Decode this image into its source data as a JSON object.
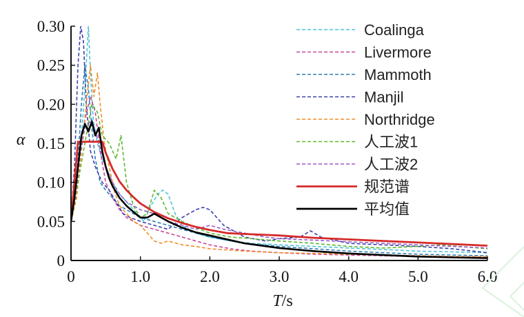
{
  "chart_data": {
    "type": "line",
    "title": "",
    "xlabel_symbol": "T",
    "xlabel_unit": "/s",
    "ylabel": "α",
    "xlim": [
      0,
      6.0
    ],
    "ylim": [
      0,
      0.3
    ],
    "xticks": [
      0,
      1.0,
      2.0,
      3.0,
      4.0,
      5.0,
      6.0
    ],
    "xtick_labels": [
      "0",
      "1.0",
      "2.0",
      "3.0",
      "4.0",
      "5.0",
      "6.0"
    ],
    "yticks": [
      0,
      0.05,
      0.1,
      0.15,
      0.2,
      0.25,
      0.3
    ],
    "ytick_labels": [
      "0",
      "0.05",
      "0.10",
      "0.15",
      "0.20",
      "0.25",
      "0.30"
    ],
    "legend_position": "top-right",
    "series": [
      {
        "name": "Coalinga",
        "color": "#4fc3d9",
        "dash": true,
        "x": [
          0,
          0.08,
          0.15,
          0.2,
          0.25,
          0.28,
          0.32,
          0.38,
          0.45,
          0.55,
          0.65,
          0.75,
          0.85,
          0.95,
          1.05,
          1.15,
          1.25,
          1.32,
          1.4,
          1.5,
          1.6,
          1.8,
          2.0,
          2.3,
          2.6,
          3.0,
          3.5,
          4.0,
          4.5,
          5.0,
          5.5,
          6.0
        ],
        "y": [
          0.05,
          0.09,
          0.16,
          0.22,
          0.3,
          0.24,
          0.18,
          0.15,
          0.13,
          0.11,
          0.09,
          0.08,
          0.07,
          0.06,
          0.05,
          0.07,
          0.085,
          0.09,
          0.085,
          0.06,
          0.045,
          0.035,
          0.03,
          0.025,
          0.022,
          0.02,
          0.018,
          0.016,
          0.014,
          0.012,
          0.011,
          0.01
        ]
      },
      {
        "name": "Livermore",
        "color": "#c8469a",
        "dash": true,
        "x": [
          0,
          0.05,
          0.12,
          0.2,
          0.28,
          0.35,
          0.42,
          0.5,
          0.6,
          0.7,
          0.8,
          0.9,
          1.0,
          1.2,
          1.4,
          1.6,
          1.8,
          2.0,
          2.3,
          2.6,
          3.0,
          3.5,
          4.0,
          4.5,
          5.0,
          5.5,
          6.0
        ],
        "y": [
          0.05,
          0.07,
          0.12,
          0.18,
          0.21,
          0.19,
          0.14,
          0.1,
          0.08,
          0.065,
          0.055,
          0.05,
          0.045,
          0.04,
          0.035,
          0.03,
          0.025,
          0.02,
          0.015,
          0.012,
          0.01,
          0.008,
          0.007,
          0.006,
          0.005,
          0.005,
          0.004
        ]
      },
      {
        "name": "Mammoth",
        "color": "#2e7fb3",
        "dash": true,
        "x": [
          0,
          0.08,
          0.15,
          0.2,
          0.25,
          0.3,
          0.35,
          0.42,
          0.5,
          0.6,
          0.7,
          0.8,
          0.9,
          1.0,
          1.2,
          1.4,
          1.6,
          1.8,
          2.0,
          2.5,
          3.0,
          3.5,
          4.0,
          4.5,
          5.0,
          5.5,
          6.0
        ],
        "y": [
          0.05,
          0.1,
          0.2,
          0.25,
          0.22,
          0.17,
          0.13,
          0.1,
          0.09,
          0.08,
          0.07,
          0.065,
          0.06,
          0.055,
          0.05,
          0.045,
          0.04,
          0.035,
          0.03,
          0.022,
          0.018,
          0.015,
          0.012,
          0.01,
          0.008,
          0.007,
          0.006
        ]
      },
      {
        "name": "Manjil",
        "color": "#3a3fa8",
        "dash": true,
        "x": [
          0,
          0.05,
          0.1,
          0.14,
          0.18,
          0.22,
          0.28,
          0.35,
          0.45,
          0.55,
          0.65,
          0.75,
          0.85,
          1.0,
          1.2,
          1.4,
          1.6,
          1.8,
          1.9,
          2.0,
          2.2,
          2.5,
          2.8,
          3.0,
          3.3,
          3.45,
          3.6,
          4.0,
          4.5,
          5.0,
          5.5,
          6.0
        ],
        "y": [
          0.05,
          0.12,
          0.25,
          0.3,
          0.28,
          0.2,
          0.14,
          0.12,
          0.1,
          0.09,
          0.075,
          0.06,
          0.055,
          0.05,
          0.045,
          0.04,
          0.055,
          0.065,
          0.068,
          0.065,
          0.045,
          0.03,
          0.025,
          0.028,
          0.03,
          0.038,
          0.03,
          0.022,
          0.02,
          0.018,
          0.015,
          0.01
        ]
      },
      {
        "name": "Northridge",
        "color": "#f28c28",
        "dash": true,
        "x": [
          0,
          0.08,
          0.15,
          0.22,
          0.28,
          0.33,
          0.38,
          0.42,
          0.48,
          0.55,
          0.62,
          0.7,
          0.8,
          0.9,
          1.0,
          1.1,
          1.2,
          1.3,
          1.4,
          1.6,
          1.8,
          2.0,
          2.5,
          3.0,
          3.5,
          4.0,
          4.5,
          5.0,
          5.5,
          6.0
        ],
        "y": [
          0.05,
          0.08,
          0.14,
          0.2,
          0.25,
          0.21,
          0.24,
          0.2,
          0.15,
          0.12,
          0.09,
          0.07,
          0.06,
          0.05,
          0.045,
          0.035,
          0.025,
          0.022,
          0.025,
          0.02,
          0.018,
          0.015,
          0.012,
          0.01,
          0.009,
          0.008,
          0.007,
          0.006,
          0.005,
          0.005
        ]
      },
      {
        "name": "人工波1",
        "color": "#5ab82e",
        "dash": true,
        "x": [
          0,
          0.1,
          0.2,
          0.3,
          0.38,
          0.45,
          0.55,
          0.65,
          0.72,
          0.8,
          0.9,
          1.0,
          1.1,
          1.2,
          1.3,
          1.4,
          1.6,
          1.8,
          2.0,
          2.3,
          2.6,
          3.0,
          3.5,
          4.0,
          4.5,
          5.0,
          5.3,
          5.6,
          6.0
        ],
        "y": [
          0.05,
          0.1,
          0.15,
          0.2,
          0.19,
          0.16,
          0.15,
          0.13,
          0.16,
          0.1,
          0.07,
          0.055,
          0.06,
          0.09,
          0.08,
          0.06,
          0.05,
          0.042,
          0.035,
          0.03,
          0.028,
          0.025,
          0.022,
          0.018,
          0.016,
          0.018,
          0.02,
          0.018,
          0.015
        ]
      },
      {
        "name": "人工波2",
        "color": "#9a5cc8",
        "dash": true,
        "x": [
          0,
          0.1,
          0.2,
          0.3,
          0.4,
          0.5,
          0.6,
          0.7,
          0.8,
          0.9,
          1.0,
          1.2,
          1.4,
          1.6,
          1.8,
          2.0,
          2.2,
          2.5,
          2.8,
          3.0,
          3.5,
          4.0,
          4.5,
          5.0,
          5.5,
          6.0
        ],
        "y": [
          0.05,
          0.12,
          0.17,
          0.18,
          0.15,
          0.12,
          0.1,
          0.085,
          0.075,
          0.07,
          0.065,
          0.06,
          0.05,
          0.045,
          0.04,
          0.045,
          0.04,
          0.035,
          0.03,
          0.028,
          0.026,
          0.024,
          0.022,
          0.02,
          0.018,
          0.016
        ]
      },
      {
        "name": "规范谱",
        "color": "#d62a2a",
        "dash": false,
        "x": [
          0,
          0.1,
          0.45,
          0.5,
          0.6,
          0.7,
          0.8,
          0.9,
          1.0,
          1.2,
          1.4,
          1.6,
          1.8,
          2.0,
          2.25,
          2.5,
          3.0,
          3.5,
          4.0,
          4.5,
          5.0,
          5.5,
          6.0
        ],
        "y": [
          0.05,
          0.152,
          0.152,
          0.138,
          0.117,
          0.101,
          0.09,
          0.081,
          0.073,
          0.062,
          0.054,
          0.048,
          0.043,
          0.039,
          0.035,
          0.034,
          0.032,
          0.029,
          0.027,
          0.025,
          0.023,
          0.021,
          0.019
        ]
      },
      {
        "name": "平均值",
        "color": "#000000",
        "dash": false,
        "x": [
          0,
          0.05,
          0.1,
          0.15,
          0.2,
          0.25,
          0.3,
          0.35,
          0.4,
          0.45,
          0.5,
          0.55,
          0.6,
          0.7,
          0.8,
          0.9,
          1.0,
          1.1,
          1.2,
          1.3,
          1.4,
          1.6,
          1.8,
          2.0,
          2.2,
          2.5,
          3.0,
          3.5,
          4.0,
          4.5,
          5.0,
          5.5,
          6.0
        ],
        "y": [
          0.05,
          0.08,
          0.12,
          0.16,
          0.175,
          0.165,
          0.178,
          0.16,
          0.17,
          0.14,
          0.12,
          0.105,
          0.095,
          0.08,
          0.07,
          0.062,
          0.055,
          0.055,
          0.06,
          0.055,
          0.05,
          0.042,
          0.036,
          0.032,
          0.028,
          0.022,
          0.016,
          0.012,
          0.009,
          0.007,
          0.005,
          0.004,
          0.003
        ]
      }
    ]
  }
}
